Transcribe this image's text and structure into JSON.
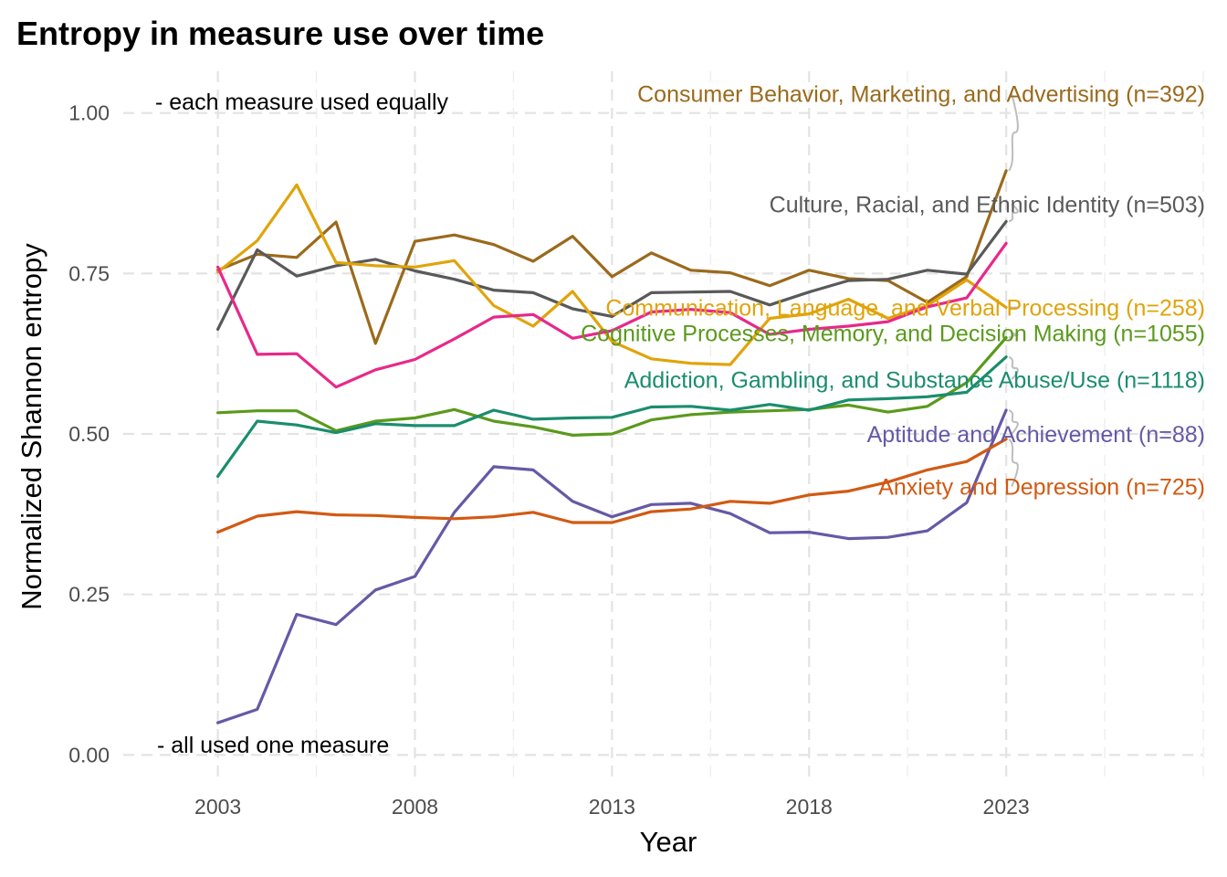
{
  "chart_data": {
    "type": "line",
    "title": "Entropy in measure use over time",
    "xlabel": "Year",
    "ylabel": "Normalized Shannon entropy",
    "xlim": [
      2000.6,
      2028
    ],
    "ylim": [
      -0.045,
      1.065
    ],
    "x_ticks": [
      2003,
      2008,
      2013,
      2018,
      2023
    ],
    "x_tick_labels": [
      "2003",
      "2008",
      "2013",
      "2018",
      "2023"
    ],
    "x_minor_ticks": [
      2005.5,
      2010.5,
      2015.5,
      2020.5,
      2025.5,
      2028
    ],
    "y_ticks": [
      0,
      0.25,
      0.5,
      0.75,
      1.0
    ],
    "y_tick_labels": [
      "0.00",
      "0.25",
      "0.50",
      "0.75",
      "1.00"
    ],
    "grid": true,
    "legend": "none",
    "annotations": {
      "top": "- each measure used equally",
      "bottom": "- all used one measure"
    },
    "x": [
      2003,
      2004,
      2005,
      2006,
      2007,
      2008,
      2009,
      2010,
      2011,
      2012,
      2013,
      2014,
      2015,
      2016,
      2017,
      2018,
      2019,
      2020,
      2021,
      2022,
      2023
    ],
    "series": [
      {
        "name": "Consumer Behavior, Marketing, and Advertising",
        "label": "Consumer Behavior, Marketing, and Advertising (n=392)",
        "color": "#9a6a1c",
        "values": [
          0.755,
          0.78,
          0.775,
          0.83,
          0.641,
          0.8,
          0.81,
          0.795,
          0.769,
          0.808,
          0.745,
          0.782,
          0.755,
          0.751,
          0.731,
          0.755,
          0.742,
          0.739,
          0.705,
          0.745,
          0.91
        ],
        "label_y": 1.03
      },
      {
        "name": "Culture, Racial, and Ethnic Identity",
        "label": "Culture, Racial, and Ethnic Identity (n=503)",
        "color": "#595959",
        "values": [
          0.663,
          0.787,
          0.746,
          0.762,
          0.772,
          0.754,
          0.741,
          0.724,
          0.72,
          0.695,
          0.683,
          0.72,
          0.721,
          0.722,
          0.701,
          0.721,
          0.739,
          0.741,
          0.755,
          0.749,
          0.831
        ],
        "label_y": 0.858
      },
      {
        "name": "Communication, Language, and Verbal Processing",
        "label": "Communication, Language, and Verbal Processing (n=258)",
        "color": "#e0a40b",
        "values": [
          0.752,
          0.801,
          0.888,
          0.767,
          0.762,
          0.76,
          0.77,
          0.7,
          0.668,
          0.722,
          0.644,
          0.617,
          0.61,
          0.608,
          0.68,
          0.687,
          0.71,
          0.68,
          0.7,
          0.74,
          0.697
        ],
        "label_y": 0.697
      },
      {
        "name": "Cognitive Processes, Memory, and Decision Making",
        "label": "Cognitive Processes, Memory, and Decision Making (n=1055)",
        "color": "#5a9a1c",
        "values": [
          0.533,
          0.536,
          0.536,
          0.505,
          0.52,
          0.525,
          0.538,
          0.52,
          0.511,
          0.498,
          0.5,
          0.522,
          0.53,
          0.534,
          0.536,
          0.538,
          0.545,
          0.534,
          0.543,
          0.58,
          0.65
        ],
        "label_y": 0.657
      },
      {
        "name": "Addiction, Gambling, and Substance Abuse/Use",
        "label": "Addiction, Gambling, and Substance Abuse/Use (n=1118)",
        "color": "#1b8d6e",
        "values": [
          0.434,
          0.52,
          0.514,
          0.502,
          0.516,
          0.513,
          0.513,
          0.537,
          0.523,
          0.525,
          0.526,
          0.542,
          0.543,
          0.537,
          0.546,
          0.537,
          0.553,
          0.555,
          0.558,
          0.565,
          0.62
        ],
        "label_y": 0.585
      },
      {
        "name": "Aptitude and Achievement",
        "label": "Aptitude and Achievement (n=88)",
        "color": "#6659a6",
        "values": [
          0.05,
          0.071,
          0.219,
          0.203,
          0.257,
          0.278,
          0.378,
          0.449,
          0.444,
          0.395,
          0.371,
          0.39,
          0.392,
          0.376,
          0.346,
          0.347,
          0.337,
          0.339,
          0.349,
          0.393,
          0.537
        ],
        "label_y": 0.5
      },
      {
        "name": "Anxiety and Depression",
        "label": "Anxiety and Depression (n=725)",
        "color": "#d15a13",
        "values": [
          0.347,
          0.372,
          0.379,
          0.374,
          0.373,
          0.37,
          0.368,
          0.371,
          0.378,
          0.362,
          0.362,
          0.379,
          0.383,
          0.395,
          0.392,
          0.405,
          0.411,
          0.425,
          0.444,
          0.457,
          0.492
        ],
        "label_y": 0.418
      },
      {
        "name": "",
        "label": "",
        "color": "#e7298a",
        "values": [
          0.76,
          0.624,
          0.625,
          0.573,
          0.6,
          0.616,
          0.648,
          0.682,
          0.686,
          0.649,
          0.661,
          0.69,
          0.694,
          0.689,
          0.655,
          0.663,
          0.668,
          0.675,
          0.698,
          0.712,
          0.797
        ],
        "label_y": null
      }
    ]
  }
}
